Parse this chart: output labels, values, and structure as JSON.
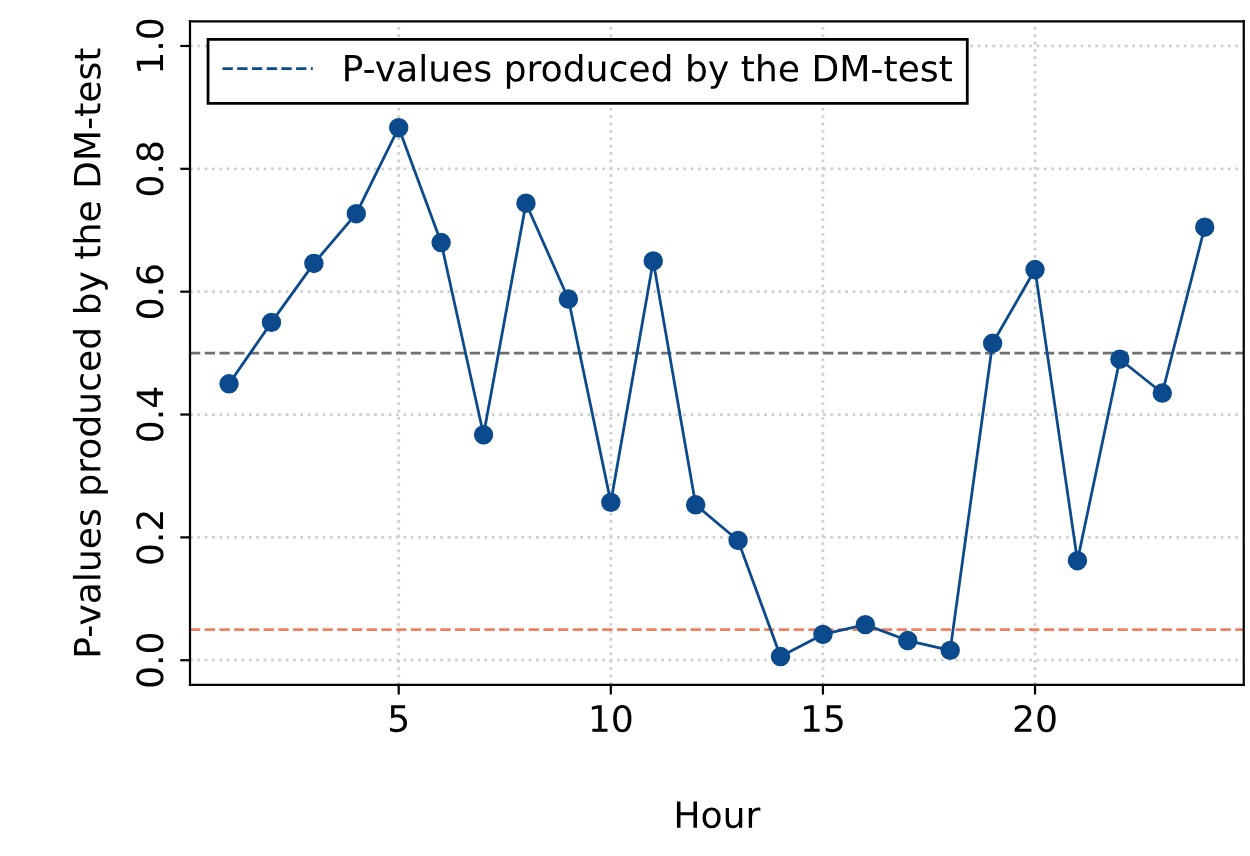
{
  "chart_data": {
    "type": "line",
    "xlabel": "Hour",
    "ylabel": "P-values produced by the DM-test",
    "x": [
      1,
      2,
      3,
      4,
      5,
      6,
      7,
      8,
      9,
      10,
      11,
      12,
      13,
      14,
      15,
      16,
      17,
      18,
      19,
      20,
      21,
      22,
      23,
      24
    ],
    "series": [
      {
        "name": "P-values produced by the DM-test",
        "color": "#0b4a8c",
        "values": [
          0.45,
          0.55,
          0.646,
          0.727,
          0.867,
          0.68,
          0.367,
          0.744,
          0.588,
          0.257,
          0.65,
          0.253,
          0.195,
          0.006,
          0.042,
          0.058,
          0.032,
          0.016,
          0.516,
          0.636,
          0.162,
          0.49,
          0.435,
          0.705
        ]
      }
    ],
    "xlim": [
      0.08,
      24.92
    ],
    "xticks": [
      5,
      10,
      15,
      20
    ],
    "ylim": [
      -0.04,
      1.04
    ],
    "yticks": [
      {
        "value": 0,
        "label": "0.0"
      },
      0.2,
      0.4,
      0.6,
      0.8,
      {
        "value": 1,
        "label": "1.0"
      }
    ],
    "ref_lines": [
      {
        "axis": "y",
        "value": 0.5,
        "color": "#707070",
        "line_style": "dashed"
      },
      {
        "axis": "y",
        "value": 0.05,
        "color": "#f08060",
        "line_style": "dashed"
      }
    ],
    "grid": true,
    "legend": "top left",
    "marker": "circle",
    "line_style": "solid"
  }
}
